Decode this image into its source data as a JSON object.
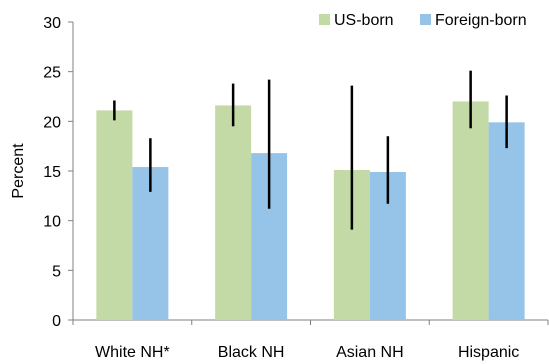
{
  "chart_data": {
    "type": "bar",
    "title": "",
    "xlabel": "",
    "ylabel": "Percent",
    "ylim": [
      0,
      30
    ],
    "yticks": [
      0,
      5,
      10,
      15,
      20,
      25,
      30
    ],
    "categories": [
      "White NH*",
      "Black NH",
      "Asian NH",
      "Hispanic"
    ],
    "legend_position": "top-right",
    "grid": false,
    "series": [
      {
        "name": "US-born",
        "color": "#c3d9a6",
        "values": [
          21.1,
          21.6,
          15.1,
          22.0
        ],
        "error_low": [
          20.1,
          19.5,
          9.1,
          19.3
        ],
        "error_high": [
          22.1,
          23.8,
          23.6,
          25.1
        ]
      },
      {
        "name": "Foreign-born",
        "color": "#96c4e8",
        "values": [
          15.4,
          16.8,
          14.9,
          19.9
        ],
        "error_low": [
          12.9,
          11.2,
          11.7,
          17.3
        ],
        "error_high": [
          18.3,
          24.2,
          18.5,
          22.6
        ]
      }
    ]
  }
}
